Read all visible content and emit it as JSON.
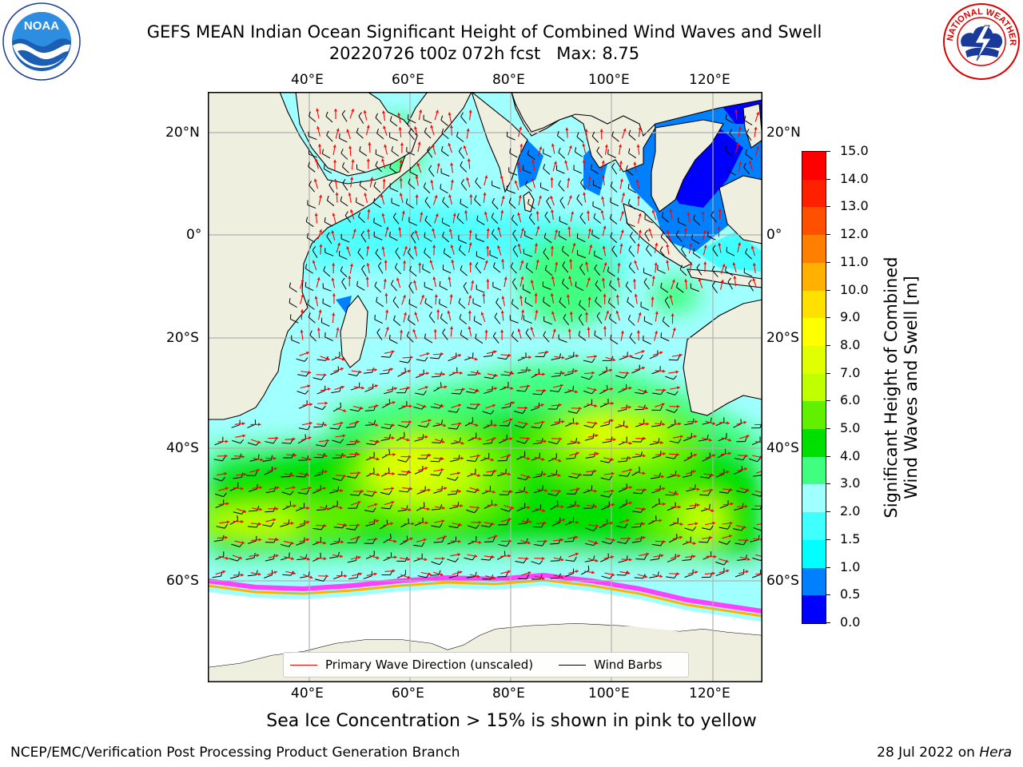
{
  "header": {
    "title_line1": "GEFS MEAN Indian Ocean Significant Height of Combined Wind Waves and Swell",
    "title_line2": "20220726 t00z 072h fcst   Max: 8.75"
  },
  "logos": {
    "left": {
      "name": "noaa-logo",
      "text": "NOAA"
    },
    "right": {
      "name": "nws-logo",
      "text": "NATIONAL WEATHER SERVICE"
    }
  },
  "map": {
    "top_lon_labels": [
      "40°E",
      "60°E",
      "80°E",
      "100°E",
      "120°E"
    ],
    "bottom_lon_labels": [
      "40°E",
      "60°E",
      "80°E",
      "100°E",
      "120°E"
    ],
    "left_lat_labels": [
      "20°N",
      "0°",
      "20°S",
      "40°S",
      "60°S"
    ],
    "right_lat_labels": [
      "20°N",
      "0°",
      "20°S",
      "40°S",
      "60°S"
    ],
    "land_color": "#efefdf",
    "max_value": 8.75
  },
  "legend": {
    "wave_direction": {
      "label": "Primary Wave Direction (unscaled)",
      "color": "#ff0000"
    },
    "wind_barbs": {
      "label": "Wind Barbs",
      "color": "#000000"
    }
  },
  "colorbar": {
    "title_line1": "Significant Height of Combined",
    "title_line2": "Wind Waves and Swell [m]",
    "ticks": [
      "0.0",
      "0.5",
      "1.0",
      "1.5",
      "2.0",
      "3.0",
      "4.0",
      "5.0",
      "6.0",
      "7.0",
      "8.0",
      "9.0",
      "10.0",
      "11.0",
      "12.0",
      "13.0",
      "14.0",
      "15.0"
    ],
    "colors": [
      "#0000ff",
      "#0080ff",
      "#00ffff",
      "#40ffff",
      "#a0ffff",
      "#40ff80",
      "#00e000",
      "#60f000",
      "#c0ff00",
      "#e0ff00",
      "#ffff00",
      "#ffe000",
      "#ffb000",
      "#ff8000",
      "#ff5000",
      "#ff2000",
      "#ff0000"
    ]
  },
  "footer": {
    "note": "Sea Ice Concentration > 15% is shown in pink to yellow",
    "credit": "NCEP/EMC/Verification Post Processing Product Generation Branch",
    "date": "28 Jul 2022 on ",
    "machine": "Hera"
  }
}
